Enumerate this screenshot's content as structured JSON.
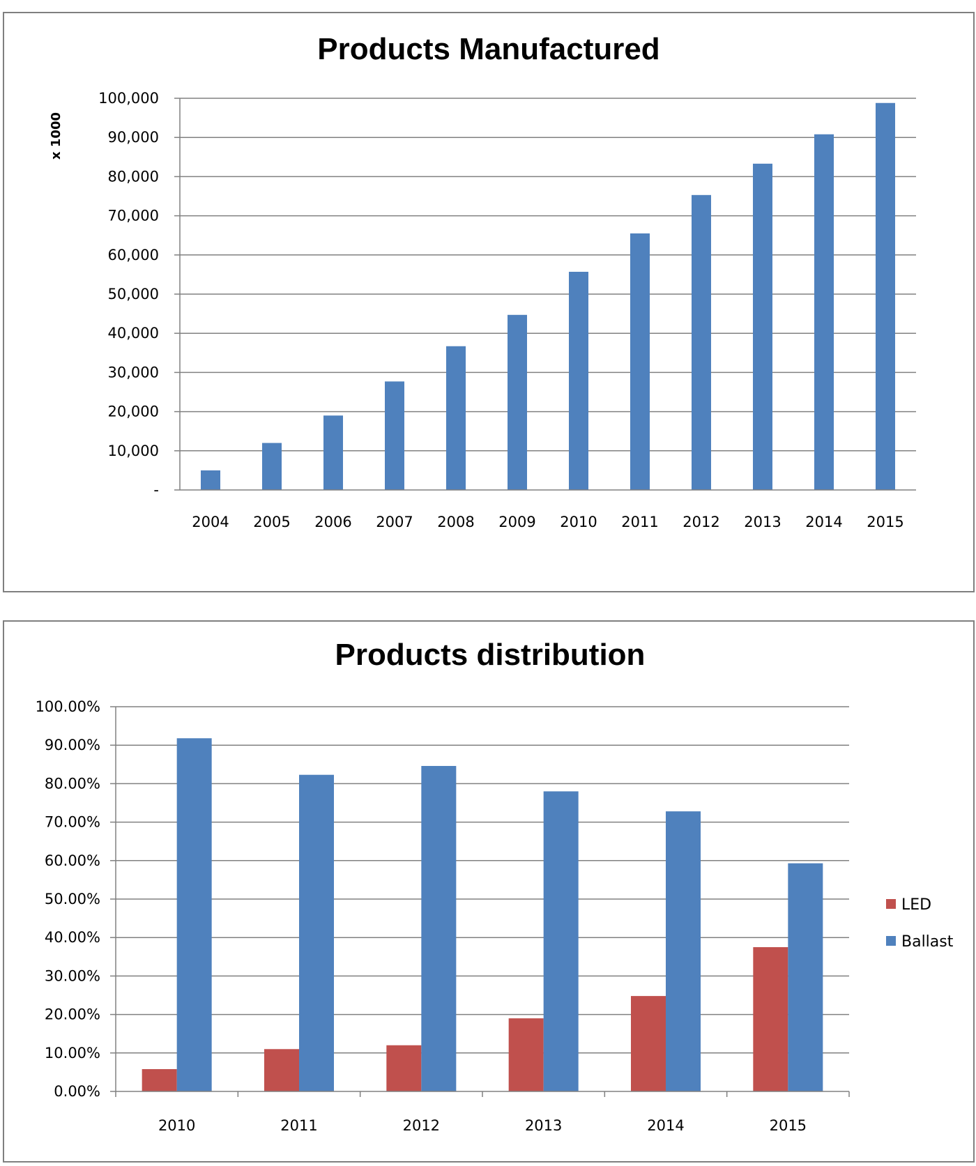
{
  "chart_data": [
    {
      "type": "bar",
      "title": "Products Manufactured",
      "xlabel": "",
      "ylabel": "x 1000",
      "categories": [
        "2004",
        "2005",
        "2006",
        "2007",
        "2008",
        "2009",
        "2010",
        "2011",
        "2012",
        "2013",
        "2014",
        "2015"
      ],
      "values": [
        5000,
        12000,
        19000,
        27700,
        36700,
        44700,
        55700,
        65500,
        75300,
        83300,
        90800,
        98800
      ],
      "ylim": [
        0,
        100000
      ],
      "yticks": [
        "-",
        "10,000",
        "20,000",
        "30,000",
        "40,000",
        "50,000",
        "60,000",
        "70,000",
        "80,000",
        "90,000",
        "100,000"
      ],
      "grid": true,
      "legend": "none",
      "colors": {
        "bar": "#4f81bd"
      }
    },
    {
      "type": "bar",
      "title": "Products distribution",
      "xlabel": "",
      "ylabel": "",
      "categories": [
        "2010",
        "2011",
        "2012",
        "2013",
        "2014",
        "2015"
      ],
      "series": [
        {
          "name": "LED",
          "color": "#c0504d",
          "values": [
            5.8,
            11.0,
            12.0,
            19.0,
            24.8,
            37.5
          ]
        },
        {
          "name": "Ballast",
          "color": "#4f81bd",
          "values": [
            91.8,
            82.3,
            84.6,
            78.0,
            72.8,
            59.3
          ]
        }
      ],
      "ylim": [
        0,
        100
      ],
      "yticks": [
        "0.00%",
        "10.00%",
        "20.00%",
        "30.00%",
        "40.00%",
        "50.00%",
        "60.00%",
        "70.00%",
        "80.00%",
        "90.00%",
        "100.00%"
      ],
      "grid": true,
      "legend": "right"
    }
  ]
}
